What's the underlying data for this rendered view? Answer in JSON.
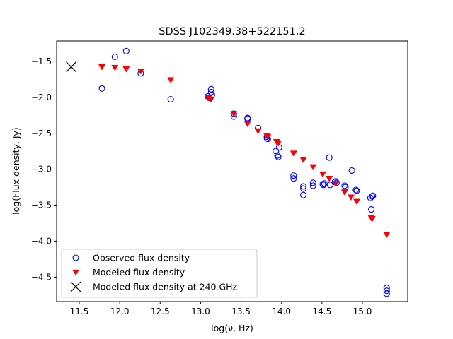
{
  "chart_data": {
    "type": "scatter",
    "title": "SDSS J102349.38+522151.2",
    "xlabel": "log(ν, Hz)",
    "ylabel": "log(Flux density, Jy)",
    "xlim": [
      11.22,
      15.56
    ],
    "ylim": [
      -4.84,
      -1.22
    ],
    "xticks": [
      11.5,
      12.0,
      12.5,
      13.0,
      13.5,
      14.0,
      14.5,
      15.0
    ],
    "xtick_labels": [
      "11.5",
      "12.0",
      "12.5",
      "13.0",
      "13.5",
      "14.0",
      "14.5",
      "15.0"
    ],
    "yticks": [
      -1.5,
      -2.0,
      -2.5,
      -3.0,
      -3.5,
      -4.0,
      -4.5
    ],
    "ytick_labels": [
      "−1.5",
      "−2.0",
      "−2.5",
      "−3.0",
      "−3.5",
      "−4.0",
      "−4.5"
    ],
    "legend_position": "lower-left",
    "series": [
      {
        "name": "Observed flux density",
        "marker": "open-circle",
        "color": "#0000ff",
        "points": [
          [
            11.78,
            -1.88
          ],
          [
            11.94,
            -1.44
          ],
          [
            12.08,
            -1.36
          ],
          [
            12.26,
            -1.67
          ],
          [
            12.63,
            -2.03
          ],
          [
            13.09,
            -1.99
          ],
          [
            13.11,
            -2.01
          ],
          [
            13.13,
            -1.89
          ],
          [
            13.13,
            -1.93
          ],
          [
            13.14,
            -1.97
          ],
          [
            13.41,
            -2.23
          ],
          [
            13.41,
            -2.27
          ],
          [
            13.58,
            -2.29
          ],
          [
            13.58,
            -2.3
          ],
          [
            13.71,
            -2.43
          ],
          [
            13.82,
            -2.55
          ],
          [
            13.82,
            -2.57
          ],
          [
            13.83,
            -2.58
          ],
          [
            13.93,
            -2.75
          ],
          [
            13.95,
            -2.81
          ],
          [
            13.96,
            -2.83
          ],
          [
            13.97,
            -2.7
          ],
          [
            14.15,
            -3.09
          ],
          [
            14.15,
            -3.13
          ],
          [
            14.27,
            -3.24
          ],
          [
            14.27,
            -3.27
          ],
          [
            14.27,
            -3.36
          ],
          [
            14.39,
            -3.19
          ],
          [
            14.39,
            -3.23
          ],
          [
            14.51,
            -3.21
          ],
          [
            14.52,
            -3.22
          ],
          [
            14.53,
            -3.2
          ],
          [
            14.59,
            -2.84
          ],
          [
            14.6,
            -3.22
          ],
          [
            14.66,
            -3.18
          ],
          [
            14.67,
            -3.17
          ],
          [
            14.68,
            -3.19
          ],
          [
            14.78,
            -3.23
          ],
          [
            14.79,
            -3.25
          ],
          [
            14.87,
            -3.02
          ],
          [
            14.92,
            -3.29
          ],
          [
            14.93,
            -3.3
          ],
          [
            15.1,
            -3.4
          ],
          [
            15.11,
            -3.56
          ],
          [
            15.12,
            -3.38
          ],
          [
            15.13,
            -3.37
          ],
          [
            15.3,
            -4.65
          ],
          [
            15.3,
            -4.69
          ],
          [
            15.3,
            -4.73
          ]
        ]
      },
      {
        "name": "Modeled flux density",
        "marker": "triangle-down",
        "color": "#ff0000",
        "points": [
          [
            11.78,
            -1.58
          ],
          [
            11.94,
            -1.59
          ],
          [
            12.08,
            -1.61
          ],
          [
            12.26,
            -1.64
          ],
          [
            12.63,
            -1.76
          ],
          [
            13.09,
            -2.01
          ],
          [
            13.13,
            -2.03
          ],
          [
            13.41,
            -2.23
          ],
          [
            13.58,
            -2.37
          ],
          [
            13.71,
            -2.47
          ],
          [
            13.82,
            -2.54
          ],
          [
            13.83,
            -2.55
          ],
          [
            13.94,
            -2.62
          ],
          [
            13.96,
            -2.64
          ],
          [
            14.15,
            -2.78
          ],
          [
            14.27,
            -2.87
          ],
          [
            14.39,
            -2.97
          ],
          [
            14.51,
            -3.07
          ],
          [
            14.59,
            -3.13
          ],
          [
            14.67,
            -3.2
          ],
          [
            14.78,
            -3.32
          ],
          [
            14.86,
            -3.39
          ],
          [
            14.93,
            -3.45
          ],
          [
            15.11,
            -3.68
          ],
          [
            15.12,
            -3.69
          ],
          [
            15.3,
            -3.91
          ]
        ]
      },
      {
        "name": "Modeled flux density at 240 GHz",
        "marker": "x",
        "color": "#000000",
        "points": [
          [
            11.4,
            -1.58
          ]
        ]
      }
    ]
  }
}
